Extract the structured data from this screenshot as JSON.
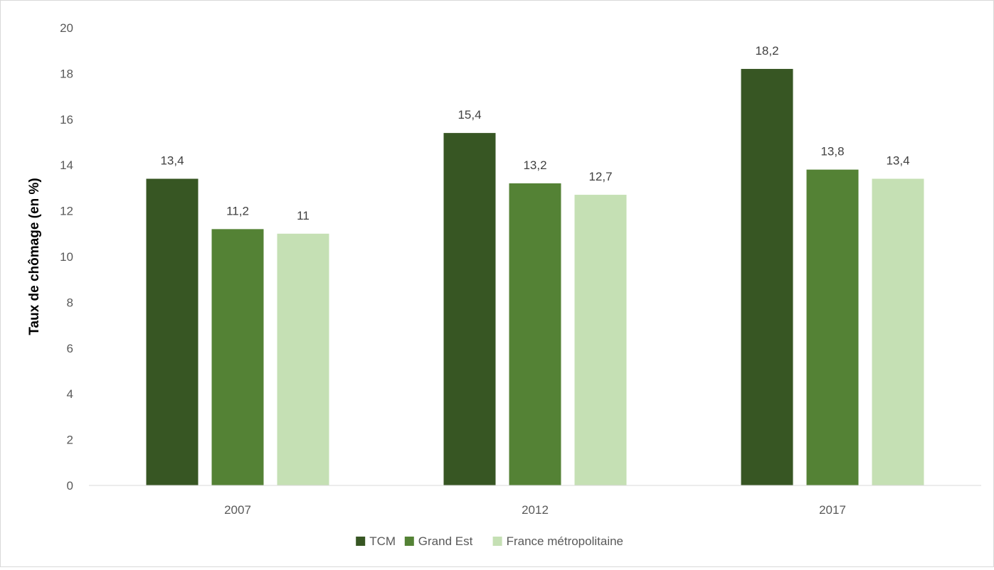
{
  "chart_data": {
    "type": "bar",
    "title": "",
    "xlabel": "",
    "ylabel": "Taux de chômage (en %)",
    "ylim": [
      0,
      20
    ],
    "yticks": [
      0,
      2,
      4,
      6,
      8,
      10,
      12,
      14,
      16,
      18,
      20
    ],
    "categories": [
      "2007",
      "2012",
      "2017"
    ],
    "series": [
      {
        "name": "TCM",
        "color": "#375623",
        "values": [
          13.4,
          15.4,
          18.2
        ],
        "labels": [
          "13,4",
          "15,4",
          "18,2"
        ]
      },
      {
        "name": "Grand Est",
        "color": "#548235",
        "values": [
          11.2,
          13.2,
          13.8
        ],
        "labels": [
          "11,2",
          "13,2",
          "13,8"
        ]
      },
      {
        "name": "France métropolitaine",
        "color": "#c5e0b4",
        "values": [
          11,
          12.7,
          13.4
        ],
        "labels": [
          "11",
          "12,7",
          "13,4"
        ]
      }
    ],
    "grid": false,
    "legend": "bottom"
  }
}
